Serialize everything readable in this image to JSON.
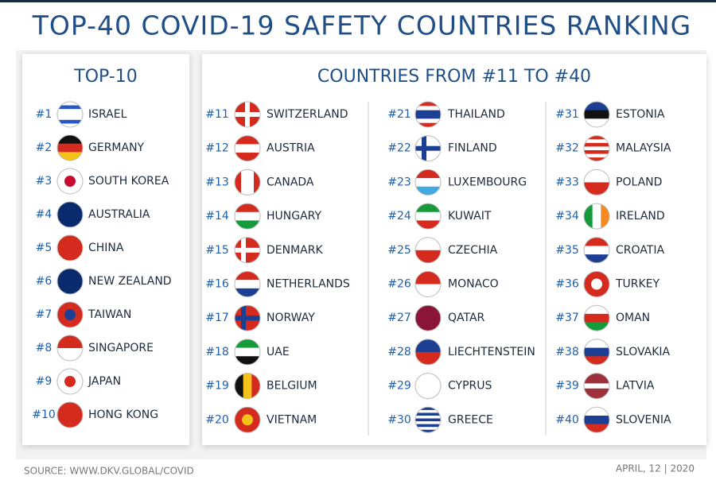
{
  "header": {
    "title": "TOP-40 COVID-19 SAFETY COUNTRIES RANKING"
  },
  "top10": {
    "title": "TOP-10",
    "items": [
      {
        "rank": "#1",
        "country": "ISRAEL"
      },
      {
        "rank": "#2",
        "country": "GERMANY"
      },
      {
        "rank": "#3",
        "country": "SOUTH KOREA"
      },
      {
        "rank": "#4",
        "country": "AUSTRALIA"
      },
      {
        "rank": "#5",
        "country": "CHINA"
      },
      {
        "rank": "#6",
        "country": "NEW ZEALAND"
      },
      {
        "rank": "#7",
        "country": "TAIWAN"
      },
      {
        "rank": "#8",
        "country": "SINGAPORE"
      },
      {
        "rank": "#9",
        "country": "JAPAN"
      },
      {
        "rank": "#10",
        "country": "HONG KONG"
      }
    ]
  },
  "rest": {
    "title": "COUNTRIES FROM #11 TO #40",
    "columns": [
      [
        {
          "rank": "#11",
          "country": "SWITZERLAND"
        },
        {
          "rank": "#12",
          "country": "AUSTRIA"
        },
        {
          "rank": "#13",
          "country": "CANADA"
        },
        {
          "rank": "#14",
          "country": "HUNGARY"
        },
        {
          "rank": "#15",
          "country": "DENMARK"
        },
        {
          "rank": "#16",
          "country": "NETHERLANDS"
        },
        {
          "rank": "#17",
          "country": "NORWAY"
        },
        {
          "rank": "#18",
          "country": "UAE"
        },
        {
          "rank": "#19",
          "country": "BELGIUM"
        },
        {
          "rank": "#20",
          "country": "VIETNAM"
        }
      ],
      [
        {
          "rank": "#21",
          "country": "THAILAND"
        },
        {
          "rank": "#22",
          "country": "FINLAND"
        },
        {
          "rank": "#23",
          "country": "LUXEMBOURG"
        },
        {
          "rank": "#24",
          "country": "KUWAIT"
        },
        {
          "rank": "#25",
          "country": "CZECHIA"
        },
        {
          "rank": "#26",
          "country": "MONACO"
        },
        {
          "rank": "#27",
          "country": "QATAR"
        },
        {
          "rank": "#28",
          "country": "LIECHTENSTEIN"
        },
        {
          "rank": "#29",
          "country": "CYPRUS"
        },
        {
          "rank": "#30",
          "country": "GREECE"
        }
      ],
      [
        {
          "rank": "#31",
          "country": "ESTONIA"
        },
        {
          "rank": "#32",
          "country": "MALAYSIA"
        },
        {
          "rank": "#33",
          "country": "POLAND"
        },
        {
          "rank": "#34",
          "country": "IRELAND"
        },
        {
          "rank": "#35",
          "country": "CROATIA"
        },
        {
          "rank": "#36",
          "country": "TURKEY"
        },
        {
          "rank": "#37",
          "country": "OMAN"
        },
        {
          "rank": "#38",
          "country": "SLOVAKIA"
        },
        {
          "rank": "#39",
          "country": "LATVIA"
        },
        {
          "rank": "#40",
          "country": "SLOVENIA"
        }
      ]
    ]
  },
  "footer": {
    "source": "SOURCE: WWW.DKV.GLOBAL/COVID",
    "date": "APRIL, 12 | 2020"
  }
}
